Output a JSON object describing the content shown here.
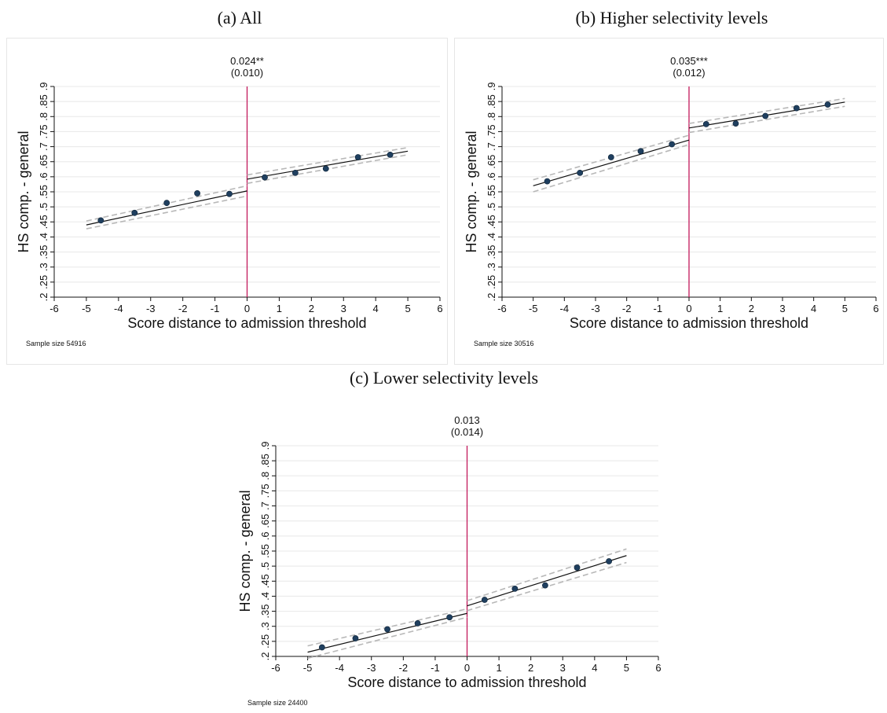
{
  "captions": {
    "a": "(a) All",
    "b": "(b) Higher selectivity levels",
    "c": "(c) Lower selectivity levels"
  },
  "chart_data": [
    {
      "type": "scatter",
      "panel": "a",
      "xlabel": "Score distance to admission threshold",
      "ylabel": "HS comp. - general",
      "xlim": [
        -6,
        6
      ],
      "ylim": [
        0.2,
        0.9
      ],
      "xticks": [
        "-6",
        "-5",
        "-4",
        "-3",
        "-2",
        "-1",
        "0",
        "1",
        "2",
        "3",
        "4",
        "5",
        "6"
      ],
      "yticks": [
        ".2",
        ".25",
        ".3",
        ".35",
        ".4",
        ".45",
        ".5",
        ".55",
        ".6",
        ".65",
        ".7",
        ".75",
        ".8",
        ".85",
        ".9"
      ],
      "grid": true,
      "threshold_x": 0,
      "estimate": "0.024**",
      "std_error": "(0.010)",
      "sample_note": "Sample size 54916",
      "points": {
        "x": [
          -4.55,
          -3.5,
          -2.5,
          -1.55,
          -0.55,
          0.55,
          1.5,
          2.45,
          3.45,
          4.45
        ],
        "y": [
          0.455,
          0.48,
          0.513,
          0.545,
          0.543,
          0.598,
          0.613,
          0.627,
          0.665,
          0.673
        ]
      },
      "fit_left": {
        "x": [
          -5,
          0
        ],
        "y": [
          0.44,
          0.553
        ]
      },
      "fit_right": {
        "x": [
          0,
          5
        ],
        "y": [
          0.592,
          0.685
        ]
      },
      "ci_left_upper": {
        "x": [
          -5,
          0
        ],
        "y": [
          0.453,
          0.57
        ]
      },
      "ci_left_lower": {
        "x": [
          -5,
          0
        ],
        "y": [
          0.427,
          0.536
        ]
      },
      "ci_right_upper": {
        "x": [
          0,
          5
        ],
        "y": [
          0.606,
          0.697
        ]
      },
      "ci_right_lower": {
        "x": [
          0,
          5
        ],
        "y": [
          0.578,
          0.673
        ]
      }
    },
    {
      "type": "scatter",
      "panel": "b",
      "xlabel": "Score distance to admission threshold",
      "ylabel": "HS comp. - general",
      "xlim": [
        -6,
        6
      ],
      "ylim": [
        0.2,
        0.9
      ],
      "xticks": [
        "-6",
        "-5",
        "-4",
        "-3",
        "-2",
        "-1",
        "0",
        "1",
        "2",
        "3",
        "4",
        "5",
        "6"
      ],
      "yticks": [
        ".2",
        ".25",
        ".3",
        ".35",
        ".4",
        ".45",
        ".5",
        ".55",
        ".6",
        ".65",
        ".7",
        ".75",
        ".8",
        ".85",
        ".9"
      ],
      "grid": true,
      "threshold_x": 0,
      "estimate": "0.035***",
      "std_error": "(0.012)",
      "sample_note": "Sample size 30516",
      "points": {
        "x": [
          -4.55,
          -3.5,
          -2.5,
          -1.55,
          -0.55,
          0.55,
          1.5,
          2.45,
          3.45,
          4.45
        ],
        "y": [
          0.585,
          0.613,
          0.665,
          0.685,
          0.708,
          0.775,
          0.777,
          0.802,
          0.828,
          0.84
        ]
      },
      "fit_left": {
        "x": [
          -5,
          0
        ],
        "y": [
          0.57,
          0.722
        ]
      },
      "fit_right": {
        "x": [
          0,
          5
        ],
        "y": [
          0.762,
          0.848
        ]
      },
      "ci_left_upper": {
        "x": [
          -5,
          0
        ],
        "y": [
          0.59,
          0.738
        ]
      },
      "ci_left_lower": {
        "x": [
          -5,
          0
        ],
        "y": [
          0.55,
          0.707
        ]
      },
      "ci_right_upper": {
        "x": [
          0,
          5
        ],
        "y": [
          0.777,
          0.86
        ]
      },
      "ci_right_lower": {
        "x": [
          0,
          5
        ],
        "y": [
          0.747,
          0.834
        ]
      }
    },
    {
      "type": "scatter",
      "panel": "c",
      "xlabel": "Score distance to admission threshold",
      "ylabel": "HS comp. - general",
      "xlim": [
        -6,
        6
      ],
      "ylim": [
        0.2,
        0.9
      ],
      "xticks": [
        "-6",
        "-5",
        "-4",
        "-3",
        "-2",
        "-1",
        "0",
        "1",
        "2",
        "3",
        "4",
        "5",
        "6"
      ],
      "yticks": [
        ".2",
        ".25",
        ".3",
        ".35",
        ".4",
        ".45",
        ".5",
        ".55",
        ".6",
        ".65",
        ".7",
        ".75",
        ".8",
        ".85",
        ".9"
      ],
      "grid": true,
      "threshold_x": 0,
      "estimate": "0.013",
      "std_error": "(0.014)",
      "sample_note": "Sample size 24400",
      "points": {
        "x": [
          -4.55,
          -3.5,
          -2.5,
          -1.55,
          -0.55,
          0.55,
          1.5,
          2.45,
          3.45,
          4.45
        ],
        "y": [
          0.23,
          0.26,
          0.29,
          0.31,
          0.33,
          0.388,
          0.425,
          0.436,
          0.495,
          0.516
        ]
      },
      "fit_left": {
        "x": [
          -5,
          0
        ],
        "y": [
          0.214,
          0.343
        ]
      },
      "fit_right": {
        "x": [
          0,
          5
        ],
        "y": [
          0.368,
          0.535
        ]
      },
      "ci_left_upper": {
        "x": [
          -5,
          0
        ],
        "y": [
          0.235,
          0.358
        ]
      },
      "ci_left_lower": {
        "x": [
          -5,
          0
        ],
        "y": [
          0.194,
          0.33
        ]
      },
      "ci_right_upper": {
        "x": [
          0,
          5
        ],
        "y": [
          0.385,
          0.557
        ]
      },
      "ci_right_lower": {
        "x": [
          0,
          5
        ],
        "y": [
          0.352,
          0.512
        ]
      }
    }
  ],
  "colors": {
    "threshold_line": "#c2185b",
    "fit_line": "#111111",
    "ci_line": "#b8b8b8",
    "marker_fill": "#1f3f5f",
    "grid": "#e8e8e8",
    "frame": "#e6e6e6"
  }
}
